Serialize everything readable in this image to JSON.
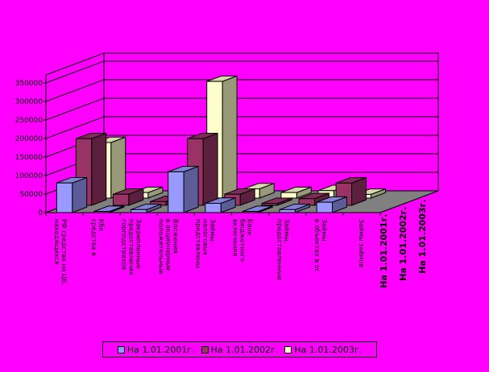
{
  "chart_data": {
    "type": "bar",
    "subtype": "3d-clustered-column",
    "categories": [
      "РФ средства на ЦБ,\nнаходящихся",
      "Кбк\nсредства в",
      "Закрепленные\nпредоставления\nгорподстрахов",
      "Вложения\nв акционерные\nположительные",
      "Займы,\nналоговых\nпредставлены",
      "Банк\nбюджетного\nвключения",
      "Займы,\nпредоставленные",
      "Займы\nв объектах в ос",
      "Займы займов"
    ],
    "series": [
      {
        "name": "На 1.01.2001г.",
        "color": "#9999ff",
        "values": [
          80000,
          3000,
          8000,
          110000,
          25000,
          3000,
          8000,
          28000,
          0
        ]
      },
      {
        "name": "На 1.01.2002г.",
        "color": "#993366",
        "values": [
          180000,
          30000,
          10000,
          180000,
          30000,
          5000,
          18000,
          60000,
          0
        ]
      },
      {
        "name": "На 1.01.2003г.",
        "color": "#ffffcc",
        "values": [
          150000,
          15000,
          5000,
          315000,
          25000,
          15000,
          20000,
          10000,
          0
        ]
      }
    ],
    "depth_labels": [
      "На 1.01.2001г.",
      "На 1.01.2002г.",
      "На 1.01.2003г."
    ],
    "y_ticks": [
      "0",
      "50000",
      "100000",
      "150000",
      "200000",
      "250000",
      "300000",
      "350000"
    ],
    "ylim": [
      0,
      350000
    ],
    "grid": true
  },
  "legend": {
    "items": [
      {
        "label": "На 1.01.2001г.",
        "color": "#9999ff"
      },
      {
        "label": "На 1.01.2002г.",
        "color": "#993366"
      },
      {
        "label": "На 1.01.2003г.",
        "color": "#ffffcc"
      }
    ]
  },
  "colors": {
    "background": "#ff00ff",
    "floor": "#808080",
    "wall": "#ff00ff"
  }
}
